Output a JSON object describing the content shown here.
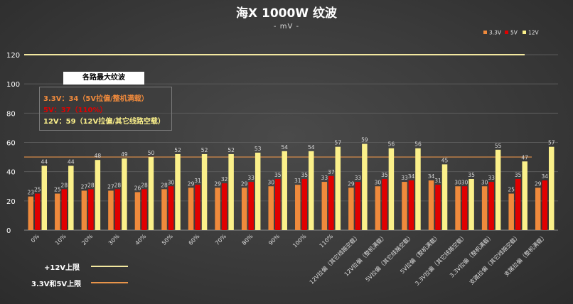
{
  "chart_data": {
    "type": "bar",
    "title": "海X 1000W 纹波",
    "subtitle": "- mV -",
    "categories": [
      "0%",
      "10%",
      "20%",
      "30%",
      "40%",
      "50%",
      "60%",
      "70%",
      "80%",
      "90%",
      "100%",
      "110%",
      "12V拉偏（其它线路空载）",
      "12V拉偏（整机满载）",
      "5V拉偏（其它线路空载）",
      "5V拉偏（整机满载）",
      "3.3V拉偏（其它线路空载）",
      "3.3V拉偏（整机满载）",
      "支路拉偏（其它线路空载）",
      "支路拉偏（整机满载）"
    ],
    "series": [
      {
        "name": "3.3V",
        "color": "#f08a3c",
        "values": [
          23,
          25,
          27,
          27,
          26,
          28,
          29,
          29,
          29,
          30,
          31,
          33,
          29,
          30,
          33,
          34,
          30,
          30,
          25,
          29
        ]
      },
      {
        "name": "5V",
        "color": "#e00000",
        "values": [
          25,
          28,
          28,
          28,
          28,
          30,
          31,
          32,
          33,
          35,
          35,
          37,
          33,
          35,
          34,
          31,
          30,
          33,
          35,
          34
        ]
      },
      {
        "name": "12V",
        "color": "#fbf08a",
        "values": [
          44,
          44,
          48,
          49,
          50,
          52,
          52,
          52,
          53,
          54,
          54,
          57,
          59,
          56,
          56,
          45,
          35,
          55,
          47,
          57
        ]
      }
    ],
    "ylim": [
      0,
      120
    ],
    "yticks": [
      0,
      20,
      40,
      60,
      80,
      100,
      120
    ],
    "legend_position": "top-right",
    "reference_lines": [
      {
        "label": "+12V上限",
        "value": 120,
        "color": "#f3e8a0"
      },
      {
        "label": "3.3V和5V上限",
        "value": 50,
        "color": "#e8944a"
      }
    ],
    "info_box": {
      "title": "各路最大纹波",
      "lines": [
        {
          "text": "3.3V：34（5V拉偏/整机满载）",
          "color": "#f08a3c"
        },
        {
          "text": "5V：37（110%）",
          "color": "#e00000"
        },
        {
          "text": "12V：59（12V拉偏/其它线路空载）",
          "color": "#fbf08a"
        }
      ]
    }
  }
}
